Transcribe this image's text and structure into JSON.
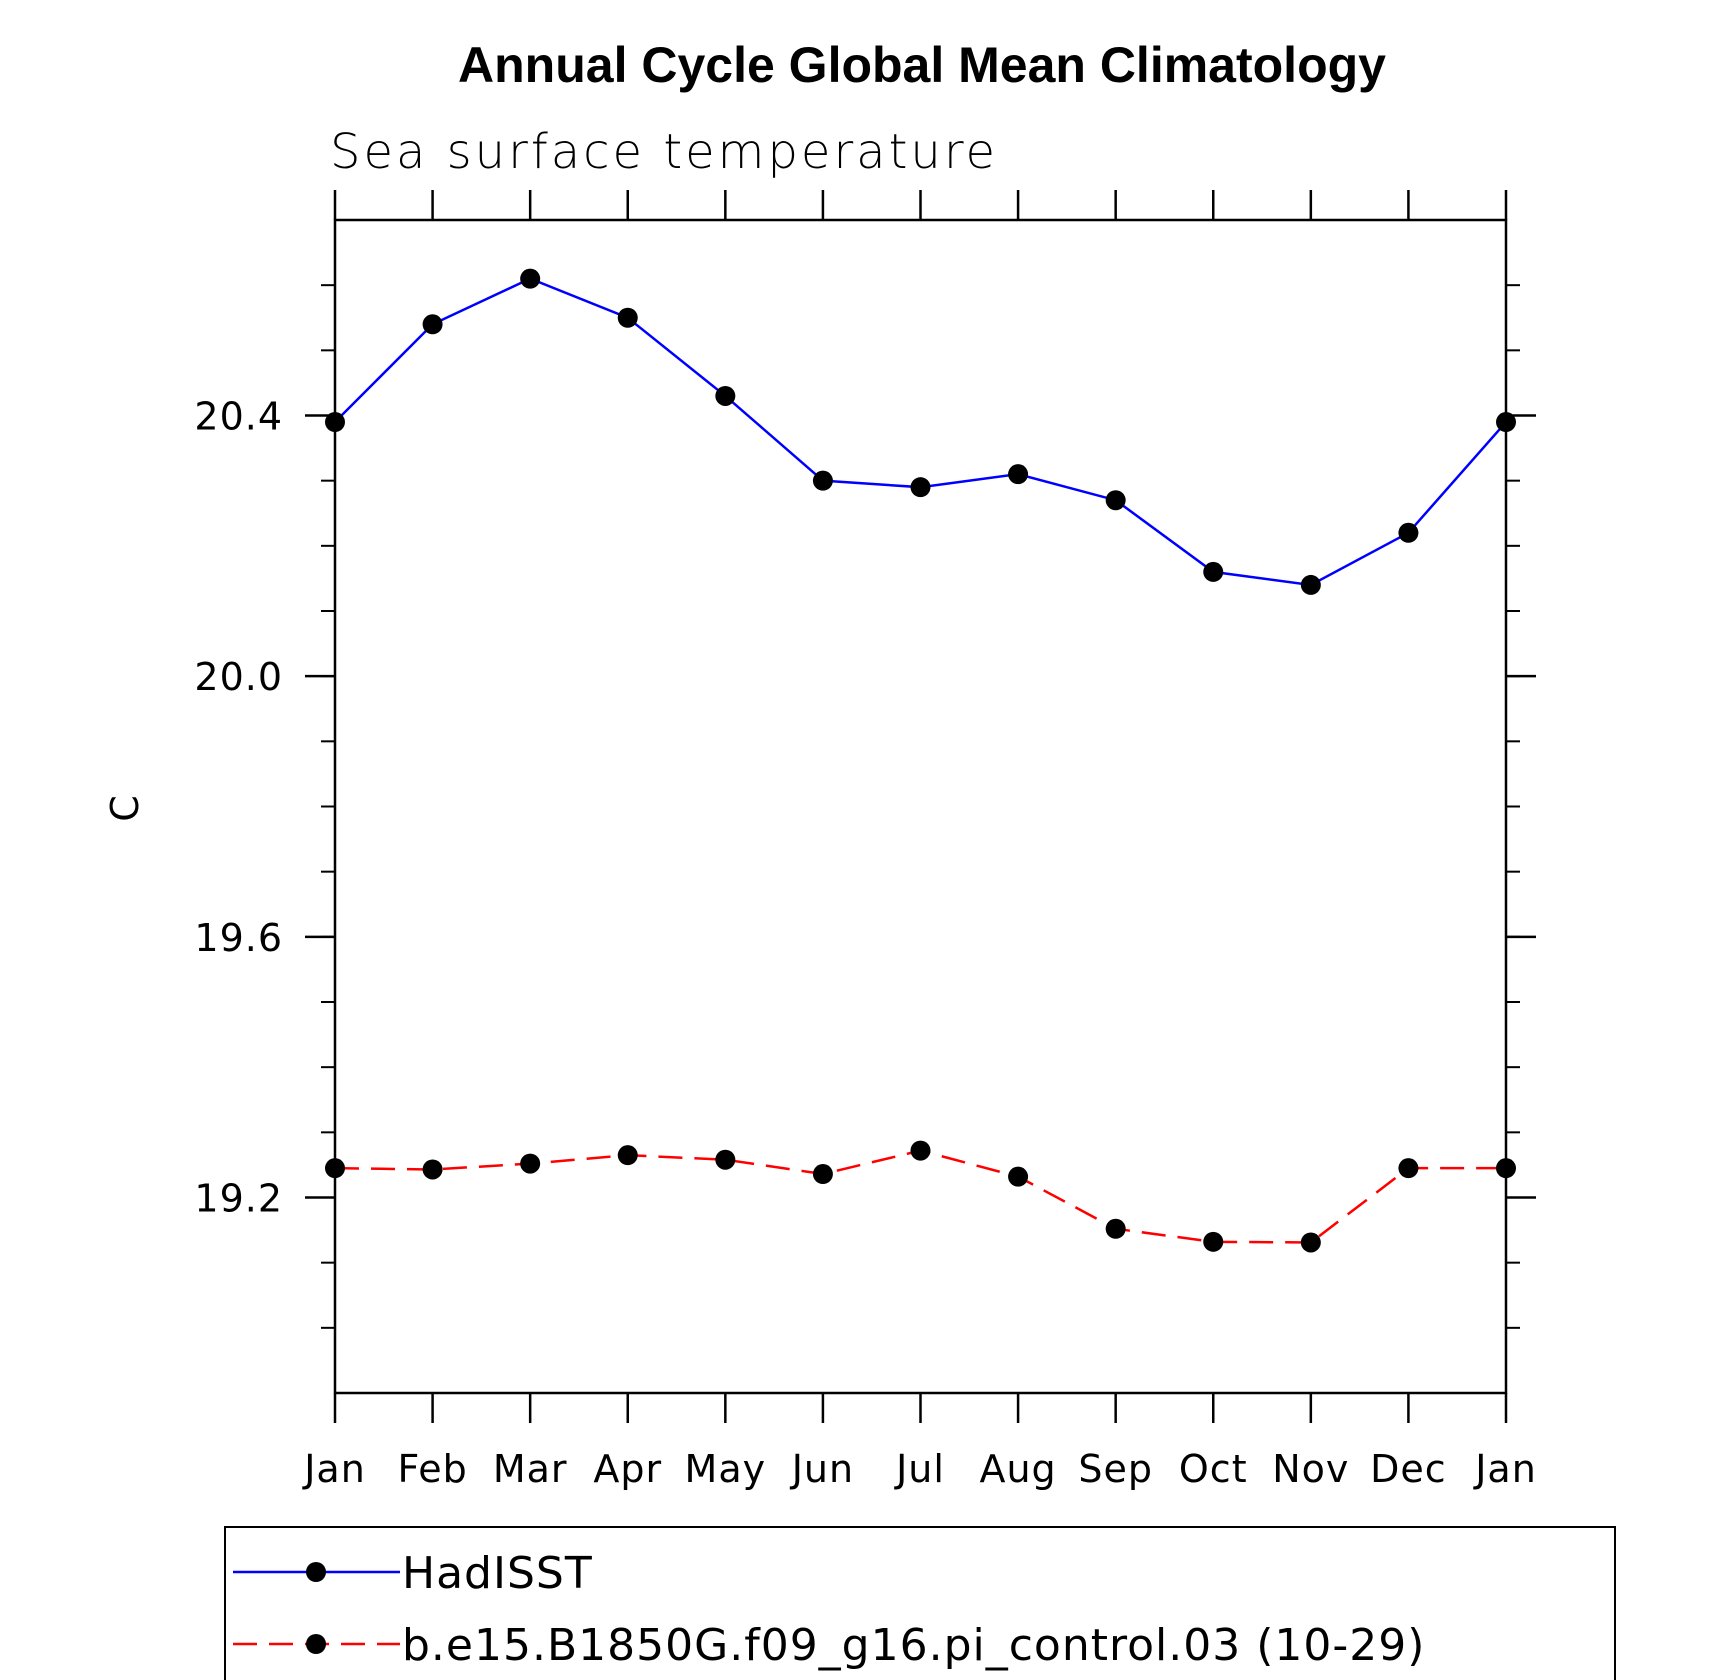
{
  "chart_data": {
    "type": "line",
    "title": "Annual Cycle Global Mean Climatology",
    "subtitle": "Sea surface temperature",
    "xlabel": "",
    "ylabel": "C",
    "categories": [
      "Jan",
      "Feb",
      "Mar",
      "Apr",
      "May",
      "Jun",
      "Jul",
      "Aug",
      "Sep",
      "Oct",
      "Nov",
      "Dec",
      "Jan"
    ],
    "ylim": [
      18.9,
      20.7
    ],
    "yticks": [
      "19.2",
      "19.6",
      "20.0",
      "20.4"
    ],
    "ytick_values": [
      19.2,
      19.6,
      20.0,
      20.4
    ],
    "y_minor_step": 0.1,
    "grid": false,
    "legend_position": "bottom",
    "series": [
      {
        "name": "HadISST",
        "color": "#0000ff",
        "dash": "solid",
        "marker": "filled-circle",
        "values": [
          20.39,
          20.54,
          20.61,
          20.55,
          20.43,
          20.3,
          20.29,
          20.31,
          20.27,
          20.16,
          20.14,
          20.22,
          20.39
        ]
      },
      {
        "name": "b.e15.B1850G.f09_g16.pi_control.03 (10-29)",
        "color": "#ff0000",
        "dash": "dashed",
        "marker": "filled-circle",
        "values": [
          19.245,
          19.243,
          19.252,
          19.265,
          19.258,
          19.236,
          19.272,
          19.232,
          19.152,
          19.132,
          19.131,
          19.245,
          19.245
        ]
      }
    ]
  }
}
